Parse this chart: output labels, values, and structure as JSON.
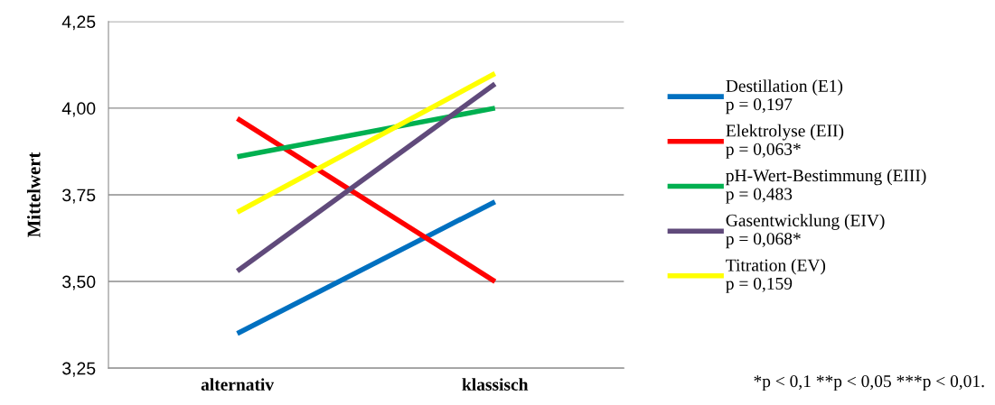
{
  "chart_data": {
    "type": "line",
    "ylabel": "Mittelwert",
    "categories": [
      "alternativ",
      "klassisch"
    ],
    "series": [
      {
        "name": "Destillation (E1)\np = 0,197",
        "color": "#0070c0",
        "values": [
          3.35,
          3.73
        ]
      },
      {
        "name": "Elektrolyse (EII)\np = 0,063*",
        "color": "#ff0000",
        "values": [
          3.97,
          3.5
        ]
      },
      {
        "name": "pH-Wert-Bestimmung (EIII)\np = 0,483",
        "color": "#00b050",
        "values": [
          3.86,
          4.0
        ]
      },
      {
        "name": "Gasentwicklung (EIV)\np = 0,068*",
        "color": "#604a7b",
        "values": [
          3.53,
          4.07
        ]
      },
      {
        "name": "Titration (EV)\np = 0,159",
        "color": "#ffff00",
        "values": [
          3.7,
          4.1
        ]
      }
    ],
    "ylim": [
      3.25,
      4.25
    ],
    "yticks": [
      {
        "value": 3.25,
        "label": "3,25"
      },
      {
        "value": 3.5,
        "label": "3,50"
      },
      {
        "value": 3.75,
        "label": "3,75"
      },
      {
        "value": 4.0,
        "label": "4,00"
      },
      {
        "value": 4.25,
        "label": "4,25"
      }
    ],
    "grid": "y",
    "legend": "right",
    "marker": "none",
    "line_style": "solid",
    "annotations": [
      "*p < 0,1 **p < 0,05 ***p < 0,01."
    ]
  }
}
